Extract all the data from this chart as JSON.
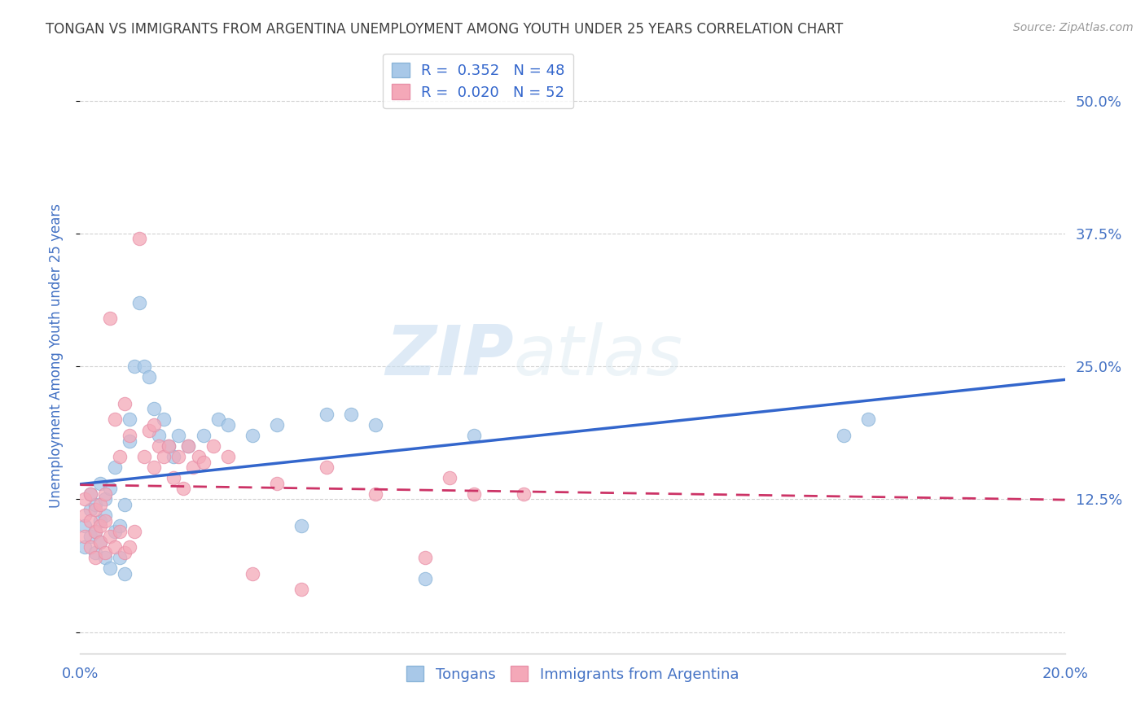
{
  "title": "TONGAN VS IMMIGRANTS FROM ARGENTINA UNEMPLOYMENT AMONG YOUTH UNDER 25 YEARS CORRELATION CHART",
  "source": "Source: ZipAtlas.com",
  "ylabel": "Unemployment Among Youth under 25 years",
  "xlim": [
    0.0,
    0.2
  ],
  "ylim": [
    -0.02,
    0.54
  ],
  "xticks": [
    0.0,
    0.05,
    0.1,
    0.15,
    0.2
  ],
  "yticks": [
    0.0,
    0.125,
    0.25,
    0.375,
    0.5
  ],
  "legend_labels": [
    "Tongans",
    "Immigrants from Argentina"
  ],
  "blue_R": "0.352",
  "blue_N": "48",
  "pink_R": "0.020",
  "pink_N": "52",
  "blue_color": "#a8c8e8",
  "pink_color": "#f4a8b8",
  "blue_line_color": "#3366cc",
  "pink_line_color": "#cc3366",
  "watermark_zip": "ZIP",
  "watermark_atlas": "atlas",
  "background_color": "#ffffff",
  "grid_color": "#cccccc",
  "title_color": "#404040",
  "axis_label_color": "#4472c4",
  "tick_color": "#4472c4",
  "tongans_x": [
    0.001,
    0.001,
    0.002,
    0.002,
    0.002,
    0.003,
    0.003,
    0.003,
    0.004,
    0.004,
    0.004,
    0.005,
    0.005,
    0.005,
    0.006,
    0.006,
    0.007,
    0.007,
    0.008,
    0.008,
    0.009,
    0.009,
    0.01,
    0.01,
    0.011,
    0.012,
    0.013,
    0.014,
    0.015,
    0.016,
    0.017,
    0.018,
    0.019,
    0.02,
    0.022,
    0.025,
    0.028,
    0.03,
    0.035,
    0.04,
    0.045,
    0.05,
    0.055,
    0.06,
    0.07,
    0.08,
    0.155,
    0.16
  ],
  "tongans_y": [
    0.1,
    0.08,
    0.09,
    0.115,
    0.13,
    0.095,
    0.12,
    0.075,
    0.105,
    0.085,
    0.14,
    0.11,
    0.07,
    0.125,
    0.06,
    0.135,
    0.095,
    0.155,
    0.07,
    0.1,
    0.055,
    0.12,
    0.2,
    0.18,
    0.25,
    0.31,
    0.25,
    0.24,
    0.21,
    0.185,
    0.2,
    0.175,
    0.165,
    0.185,
    0.175,
    0.185,
    0.2,
    0.195,
    0.185,
    0.195,
    0.1,
    0.205,
    0.205,
    0.195,
    0.05,
    0.185,
    0.185,
    0.2
  ],
  "argentina_x": [
    0.001,
    0.001,
    0.001,
    0.002,
    0.002,
    0.002,
    0.003,
    0.003,
    0.003,
    0.004,
    0.004,
    0.004,
    0.005,
    0.005,
    0.005,
    0.006,
    0.006,
    0.007,
    0.007,
    0.008,
    0.008,
    0.009,
    0.009,
    0.01,
    0.01,
    0.011,
    0.012,
    0.013,
    0.014,
    0.015,
    0.015,
    0.016,
    0.017,
    0.018,
    0.019,
    0.02,
    0.021,
    0.022,
    0.023,
    0.024,
    0.025,
    0.027,
    0.03,
    0.035,
    0.04,
    0.045,
    0.05,
    0.06,
    0.07,
    0.075,
    0.08,
    0.09
  ],
  "argentina_y": [
    0.09,
    0.11,
    0.125,
    0.08,
    0.105,
    0.13,
    0.095,
    0.115,
    0.07,
    0.085,
    0.1,
    0.12,
    0.075,
    0.105,
    0.13,
    0.09,
    0.295,
    0.08,
    0.2,
    0.095,
    0.165,
    0.075,
    0.215,
    0.08,
    0.185,
    0.095,
    0.37,
    0.165,
    0.19,
    0.195,
    0.155,
    0.175,
    0.165,
    0.175,
    0.145,
    0.165,
    0.135,
    0.175,
    0.155,
    0.165,
    0.16,
    0.175,
    0.165,
    0.055,
    0.14,
    0.04,
    0.155,
    0.13,
    0.07,
    0.145,
    0.13,
    0.13
  ]
}
